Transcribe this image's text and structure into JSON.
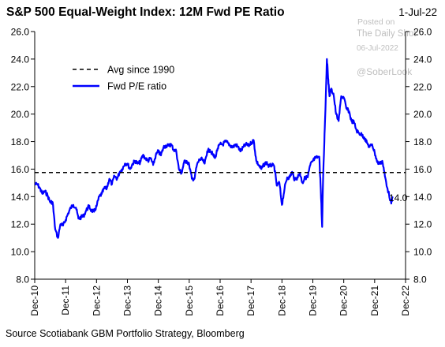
{
  "header": {
    "title": "S&P 500 Equal-Weight Index: 12M Fwd PE Ratio",
    "date": "1-Jul-22"
  },
  "footer": {
    "source": "Source Scotiabank GBM Portfolio Strategy, Bloomberg"
  },
  "watermark": {
    "line1": "Posted on",
    "line2": "The Daily Shot",
    "line3": "06-Jul-2022",
    "handle": "@SoberLook"
  },
  "colors": {
    "series": "#0000ff",
    "average": "#000000",
    "axis": "#000000"
  },
  "chart_data": {
    "type": "line",
    "title": "S&P 500 Equal-Weight Index: 12M Fwd PE Ratio",
    "xlabel": "",
    "ylabel": "",
    "ylim": [
      8.0,
      26.0
    ],
    "yticks": [
      "8.0",
      "10.0",
      "12.0",
      "14.0",
      "16.0",
      "18.0",
      "20.0",
      "22.0",
      "24.0",
      "26.0"
    ],
    "xticks": [
      "Dec-10",
      "Dec-11",
      "Dec-12",
      "Dec-13",
      "Dec-14",
      "Dec-15",
      "Dec-16",
      "Dec-17",
      "Dec-18",
      "Dec-19",
      "Dec-20",
      "Dec-21",
      "Dec-22"
    ],
    "legend_position": "top-left",
    "grid": false,
    "last_value_label": "14.0",
    "series": [
      {
        "name": "Fwd P/E ratio",
        "style": "solid",
        "points": [
          [
            "2010-12-01",
            14.9
          ],
          [
            "2011-01-01",
            14.9
          ],
          [
            "2011-02-01",
            14.6
          ],
          [
            "2011-03-01",
            14.2
          ],
          [
            "2011-04-01",
            14.4
          ],
          [
            "2011-05-01",
            14.1
          ],
          [
            "2011-06-01",
            13.6
          ],
          [
            "2011-07-01",
            13.6
          ],
          [
            "2011-08-01",
            11.6
          ],
          [
            "2011-09-01",
            11.0
          ],
          [
            "2011-10-01",
            12.0
          ],
          [
            "2011-11-01",
            11.9
          ],
          [
            "2011-12-01",
            12.3
          ],
          [
            "2012-01-01",
            12.8
          ],
          [
            "2012-02-01",
            13.2
          ],
          [
            "2012-03-01",
            13.4
          ],
          [
            "2012-04-01",
            13.2
          ],
          [
            "2012-05-01",
            12.4
          ],
          [
            "2012-06-01",
            12.5
          ],
          [
            "2012-07-01",
            12.6
          ],
          [
            "2012-08-01",
            13.0
          ],
          [
            "2012-09-01",
            13.3
          ],
          [
            "2012-10-01",
            13.0
          ],
          [
            "2012-11-01",
            12.9
          ],
          [
            "2012-12-01",
            13.3
          ],
          [
            "2013-01-01",
            14.0
          ],
          [
            "2013-02-01",
            14.2
          ],
          [
            "2013-03-01",
            14.6
          ],
          [
            "2013-04-01",
            14.6
          ],
          [
            "2013-05-01",
            15.3
          ],
          [
            "2013-06-01",
            14.9
          ],
          [
            "2013-07-01",
            15.5
          ],
          [
            "2013-08-01",
            15.3
          ],
          [
            "2013-09-01",
            15.8
          ],
          [
            "2013-10-01",
            16.0
          ],
          [
            "2013-11-01",
            16.4
          ],
          [
            "2013-12-01",
            16.4
          ],
          [
            "2014-01-01",
            16.0
          ],
          [
            "2014-02-01",
            16.4
          ],
          [
            "2014-03-01",
            16.6
          ],
          [
            "2014-04-01",
            16.4
          ],
          [
            "2014-05-01",
            16.5
          ],
          [
            "2014-06-01",
            17.0
          ],
          [
            "2014-07-01",
            16.8
          ],
          [
            "2014-08-01",
            16.6
          ],
          [
            "2014-09-01",
            16.8
          ],
          [
            "2014-10-01",
            16.3
          ],
          [
            "2014-11-01",
            17.0
          ],
          [
            "2014-12-01",
            17.3
          ],
          [
            "2015-01-01",
            17.0
          ],
          [
            "2015-02-01",
            17.6
          ],
          [
            "2015-03-01",
            17.7
          ],
          [
            "2015-04-01",
            17.7
          ],
          [
            "2015-05-01",
            17.8
          ],
          [
            "2015-06-01",
            17.4
          ],
          [
            "2015-07-01",
            17.3
          ],
          [
            "2015-08-01",
            16.0
          ],
          [
            "2015-09-01",
            15.7
          ],
          [
            "2015-10-01",
            16.5
          ],
          [
            "2015-11-01",
            16.6
          ],
          [
            "2015-12-01",
            16.3
          ],
          [
            "2016-01-01",
            15.3
          ],
          [
            "2016-02-01",
            15.3
          ],
          [
            "2016-03-01",
            16.3
          ],
          [
            "2016-04-01",
            16.7
          ],
          [
            "2016-05-01",
            16.7
          ],
          [
            "2016-06-01",
            16.4
          ],
          [
            "2016-07-01",
            17.3
          ],
          [
            "2016-08-01",
            17.4
          ],
          [
            "2016-09-01",
            17.1
          ],
          [
            "2016-10-01",
            16.8
          ],
          [
            "2016-11-01",
            17.5
          ],
          [
            "2016-12-01",
            17.8
          ],
          [
            "2017-01-01",
            17.8
          ],
          [
            "2017-02-01",
            18.0
          ],
          [
            "2017-03-01",
            17.9
          ],
          [
            "2017-04-01",
            17.7
          ],
          [
            "2017-05-01",
            17.6
          ],
          [
            "2017-06-01",
            17.8
          ],
          [
            "2017-07-01",
            17.6
          ],
          [
            "2017-08-01",
            17.3
          ],
          [
            "2017-09-01",
            17.6
          ],
          [
            "2017-10-01",
            17.8
          ],
          [
            "2017-11-01",
            17.7
          ],
          [
            "2017-12-01",
            17.9
          ],
          [
            "2018-01-01",
            18.1
          ],
          [
            "2018-02-01",
            16.6
          ],
          [
            "2018-03-01",
            16.3
          ],
          [
            "2018-04-01",
            16.0
          ],
          [
            "2018-05-01",
            16.3
          ],
          [
            "2018-06-01",
            16.5
          ],
          [
            "2018-07-01",
            16.2
          ],
          [
            "2018-08-01",
            16.3
          ],
          [
            "2018-09-01",
            16.2
          ],
          [
            "2018-10-01",
            14.8
          ],
          [
            "2018-11-01",
            15.0
          ],
          [
            "2018-12-01",
            13.4
          ],
          [
            "2019-01-01",
            14.6
          ],
          [
            "2019-02-01",
            15.4
          ],
          [
            "2019-03-01",
            15.4
          ],
          [
            "2019-04-01",
            15.8
          ],
          [
            "2019-05-01",
            15.2
          ],
          [
            "2019-06-01",
            15.4
          ],
          [
            "2019-07-01",
            15.7
          ],
          [
            "2019-08-01",
            15.0
          ],
          [
            "2019-09-01",
            15.4
          ],
          [
            "2019-10-01",
            15.4
          ],
          [
            "2019-11-01",
            16.3
          ],
          [
            "2019-12-01",
            16.6
          ],
          [
            "2020-01-01",
            16.8
          ],
          [
            "2020-02-15",
            16.9
          ],
          [
            "2020-03-01",
            15.0
          ],
          [
            "2020-03-20",
            11.8
          ],
          [
            "2020-04-01",
            15.5
          ],
          [
            "2020-04-15",
            18.0
          ],
          [
            "2020-05-01",
            21.0
          ],
          [
            "2020-05-15",
            24.0
          ],
          [
            "2020-06-01",
            22.5
          ],
          [
            "2020-06-15",
            21.3
          ],
          [
            "2020-07-01",
            21.8
          ],
          [
            "2020-08-01",
            21.5
          ],
          [
            "2020-09-01",
            20.0
          ],
          [
            "2020-10-01",
            19.5
          ],
          [
            "2020-11-01",
            21.3
          ],
          [
            "2020-12-01",
            21.2
          ],
          [
            "2021-01-01",
            20.4
          ],
          [
            "2021-02-01",
            20.2
          ],
          [
            "2021-03-01",
            19.5
          ],
          [
            "2021-04-01",
            19.4
          ],
          [
            "2021-05-01",
            18.8
          ],
          [
            "2021-06-01",
            18.6
          ],
          [
            "2021-07-01",
            18.5
          ],
          [
            "2021-08-01",
            18.3
          ],
          [
            "2021-09-01",
            17.9
          ],
          [
            "2021-10-01",
            17.6
          ],
          [
            "2021-11-01",
            17.8
          ],
          [
            "2021-12-01",
            17.2
          ],
          [
            "2022-01-01",
            16.5
          ],
          [
            "2022-02-01",
            16.4
          ],
          [
            "2022-03-01",
            16.6
          ],
          [
            "2022-04-01",
            15.5
          ],
          [
            "2022-05-01",
            14.6
          ],
          [
            "2022-06-15",
            13.5
          ],
          [
            "2022-07-01",
            14.0
          ]
        ]
      },
      {
        "name": "Avg since 1990",
        "style": "dashed",
        "points": [
          [
            "2010-12-01",
            15.75
          ],
          [
            "2022-07-01",
            15.75
          ]
        ]
      }
    ]
  }
}
